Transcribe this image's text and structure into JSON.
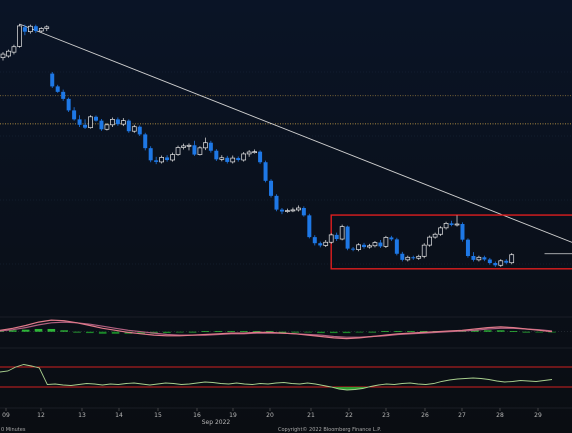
{
  "chart_data": {
    "type": "candlestick",
    "x_tick_labels": [
      "09",
      "12",
      "13",
      "14",
      "15",
      "16",
      "19",
      "20",
      "21",
      "22",
      "23",
      "26",
      "27",
      "28",
      "29"
    ],
    "month_label": "Sep 2022",
    "interval_label": "0 Minutes",
    "copyright": "Copyright© 2022 Bloomberg Finance L.P.",
    "colors": {
      "up": "#f2f2f2",
      "down": "#1e78e6",
      "trendline": "#cfcfcf",
      "box": "#e01e1e",
      "dotted": "#e8b84a",
      "macd_fast": "#e07a8a",
      "macd_slow": "#b06080",
      "histogram": "#2fbf3a",
      "rsi": "#a9d08e",
      "rsi_band": "#d02020"
    },
    "price_ylim": [
      0,
      100
    ],
    "candles": [
      [
        94.5,
        95.6,
        93.6,
        96.2
      ],
      [
        95,
        96.5,
        94.5,
        97
      ],
      [
        96.2,
        97.9,
        95.5,
        98.5
      ],
      [
        98,
        104.4,
        97.6,
        105
      ],
      [
        104,
        102.6,
        101.5,
        104.8
      ],
      [
        102.6,
        104.3,
        102,
        104.8
      ],
      [
        104.3,
        102.8,
        102.2,
        104.8
      ],
      [
        102.8,
        103.6,
        102.4,
        104
      ],
      [
        103.6,
        104.1,
        102.8,
        104.6
      ],
      [
        89.5,
        85.5,
        85,
        90
      ],
      [
        85.5,
        83.8,
        83.5,
        86
      ],
      [
        83.8,
        81.6,
        81,
        84.5
      ],
      [
        81.6,
        78,
        77.5,
        82
      ],
      [
        78,
        75.2,
        74.8,
        79
      ],
      [
        75.2,
        73.5,
        72.8,
        76.5
      ],
      [
        73.5,
        72.6,
        72.2,
        75.2
      ],
      [
        72.6,
        76,
        72.3,
        76.5
      ],
      [
        76,
        74.8,
        74.5,
        76.4
      ],
      [
        74.8,
        72.1,
        71.6,
        75.3
      ],
      [
        72.1,
        73.5,
        71.7,
        74
      ],
      [
        73.5,
        75.2,
        72.8,
        75.8
      ],
      [
        75.2,
        73.7,
        73.2,
        75.8
      ],
      [
        73.7,
        74.8,
        73.1,
        75.6
      ],
      [
        74.8,
        71.5,
        71,
        75.2
      ],
      [
        71.5,
        72.9,
        71,
        73.5
      ],
      [
        72.9,
        70.5,
        70,
        73.3
      ],
      [
        70.5,
        66.2,
        65.5,
        71
      ],
      [
        66.2,
        62.4,
        61.8,
        66.8
      ],
      [
        62.4,
        61.9,
        61.2,
        63.5
      ],
      [
        61.9,
        63.3,
        61.4,
        63.9
      ],
      [
        63.3,
        62.5,
        62,
        64
      ],
      [
        62.5,
        64.2,
        62,
        64.8
      ],
      [
        64.2,
        66.4,
        63.8,
        67
      ],
      [
        66.4,
        66.9,
        65.8,
        67.6
      ],
      [
        66.9,
        67.1,
        65.5,
        67.7
      ],
      [
        67.1,
        64.2,
        63.8,
        68.5
      ],
      [
        64.2,
        66.3,
        63.9,
        66.8
      ],
      [
        66.3,
        67.9,
        65.6,
        69.5
      ],
      [
        67.9,
        65.4,
        64.8,
        68.5
      ],
      [
        65.4,
        62.7,
        62.2,
        65.9
      ],
      [
        62.7,
        63.2,
        62.1,
        64
      ],
      [
        63.2,
        61.9,
        61.4,
        63.8
      ],
      [
        61.9,
        63.1,
        61.4,
        63.9
      ],
      [
        63.1,
        62.5,
        62,
        63.6
      ],
      [
        62.5,
        64.4,
        62,
        65
      ],
      [
        64.4,
        65,
        63.5,
        65.6
      ],
      [
        65,
        65.1,
        64.5,
        65.8
      ],
      [
        65.1,
        61.8,
        61.3,
        65.5
      ],
      [
        61.8,
        56,
        55.5,
        62.3
      ],
      [
        56,
        51.3,
        50.8,
        56.5
      ],
      [
        51.3,
        47,
        46.5,
        51.8
      ],
      [
        47,
        46.4,
        45.6,
        47.5
      ],
      [
        46.4,
        46.7,
        46,
        47.3
      ],
      [
        46.7,
        46.9,
        46.2,
        47.6
      ],
      [
        46.9,
        47.5,
        46.4,
        48.3
      ],
      [
        47.5,
        45.2,
        44.8,
        48
      ],
      [
        45.2,
        38.4,
        38,
        45.7
      ],
      [
        38.4,
        36.5,
        35.8,
        39
      ],
      [
        36.5,
        35.8,
        35.2,
        37
      ],
      [
        35.8,
        36.8,
        35.3,
        37.5
      ],
      [
        36.8,
        39.1,
        36.3,
        39.6
      ],
      [
        39.1,
        37.8,
        37.2,
        39.8
      ],
      [
        37.8,
        41.7,
        37.4,
        42.3
      ],
      [
        41.7,
        34.8,
        34.3,
        42
      ],
      [
        34.8,
        34.5,
        34,
        35.3
      ],
      [
        34.5,
        36,
        34,
        36.5
      ],
      [
        36,
        35.3,
        34.8,
        36.6
      ],
      [
        35.3,
        35.7,
        34.8,
        36.3
      ],
      [
        35.7,
        36.7,
        35.2,
        37.2
      ],
      [
        36.7,
        35.5,
        35,
        37.5
      ],
      [
        35.5,
        38.3,
        35,
        38.8
      ],
      [
        38.3,
        37.7,
        37.2,
        38.8
      ],
      [
        37.7,
        33.2,
        32.7,
        38.2
      ],
      [
        33.2,
        31.3,
        30.8,
        33.8
      ],
      [
        31.3,
        32.1,
        30.8,
        32.6
      ],
      [
        32.1,
        31.8,
        31.3,
        32.6
      ],
      [
        31.8,
        32.4,
        31.3,
        32.9
      ],
      [
        32.4,
        35.9,
        31.8,
        36.5
      ],
      [
        35.9,
        38.4,
        35.4,
        38.9
      ],
      [
        38.4,
        39.3,
        37.9,
        39.8
      ],
      [
        39.3,
        41.3,
        38.8,
        41.8
      ],
      [
        41.3,
        42.7,
        40.8,
        43.2
      ],
      [
        42.7,
        42.2,
        41.8,
        43.5
      ],
      [
        42.2,
        42.5,
        41.7,
        45.2
      ],
      [
        42.5,
        37.6,
        37,
        43
      ],
      [
        37.6,
        32.5,
        32,
        38
      ],
      [
        32.5,
        31.3,
        30.8,
        33.7
      ],
      [
        31.3,
        32.1,
        30.8,
        32.6
      ],
      [
        32.1,
        31.4,
        30.9,
        32.6
      ],
      [
        31.4,
        30.3,
        29.8,
        31.9
      ],
      [
        30.3,
        29.6,
        29.1,
        30.8
      ],
      [
        29.6,
        31,
        29.1,
        31.5
      ],
      [
        31,
        30.4,
        29.9,
        31.5
      ],
      [
        30.4,
        32.9,
        29.9,
        33.4
      ]
    ],
    "trendline": [
      [
        3,
        105
      ],
      [
        97,
        41.5
      ]
    ],
    "dotted_levels": [
      82.6,
      73.8
    ],
    "box": {
      "start": 60,
      "end": 99,
      "top": 45.3,
      "bottom": 28.5
    },
    "box_side_level": 33.2,
    "macd_fast": [
      0.2,
      0.5,
      0.9,
      1.4,
      1.7,
      1.6,
      1.3,
      0.9,
      0.5,
      0.2,
      -0.1,
      -0.3,
      -0.5,
      -0.6,
      -0.6,
      -0.5,
      -0.4,
      -0.3,
      -0.2,
      -0.2,
      -0.1,
      -0.1,
      -0.2,
      -0.3,
      -0.5,
      -0.7,
      -0.9,
      -1.0,
      -0.9,
      -0.7,
      -0.5,
      -0.3,
      -0.2,
      -0.1,
      0.0,
      0.1,
      0.2,
      0.4,
      0.6,
      0.7,
      0.6,
      0.4,
      0.2,
      0.0
    ],
    "macd_slow": [
      0.1,
      0.3,
      0.6,
      1.0,
      1.3,
      1.4,
      1.3,
      1.1,
      0.8,
      0.5,
      0.2,
      0.0,
      -0.2,
      -0.4,
      -0.5,
      -0.5,
      -0.5,
      -0.4,
      -0.3,
      -0.3,
      -0.2,
      -0.2,
      -0.2,
      -0.3,
      -0.4,
      -0.5,
      -0.7,
      -0.8,
      -0.8,
      -0.7,
      -0.6,
      -0.4,
      -0.3,
      -0.2,
      -0.1,
      0.0,
      0.1,
      0.2,
      0.4,
      0.5,
      0.5,
      0.4,
      0.3,
      0.1
    ],
    "histogram": [
      0.1,
      0.2,
      0.3,
      0.4,
      0.4,
      0.2,
      0,
      -0.2,
      -0.3,
      -0.3,
      -0.3,
      -0.3,
      -0.3,
      -0.2,
      -0.1,
      0,
      0.1,
      0.1,
      0.1,
      0.1,
      0.1,
      0.1,
      0,
      0,
      -0.1,
      -0.2,
      -0.2,
      -0.2,
      -0.1,
      0,
      0.1,
      0.1,
      0.1,
      0.1,
      0.1,
      0.1,
      0.1,
      0.2,
      0.2,
      0.2,
      0.1,
      0,
      -0.1,
      -0.1
    ],
    "macd_ylim": [
      -1.5,
      2
    ],
    "rsi": [
      60,
      62,
      70,
      75,
      72,
      68,
      35,
      36,
      34,
      33,
      35,
      37,
      36,
      34,
      36,
      35,
      37,
      38,
      36,
      34,
      36,
      38,
      37,
      35,
      36,
      38,
      40,
      39,
      37,
      36,
      38,
      36,
      35,
      37,
      36,
      38,
      39,
      37,
      36,
      38,
      36,
      33,
      30,
      26,
      24,
      25,
      27,
      31,
      34,
      36,
      35,
      37,
      38,
      36,
      35,
      37,
      41,
      44,
      46,
      47,
      48,
      47,
      45,
      42,
      40,
      41,
      43,
      42,
      41,
      43,
      45
    ],
    "rsi_ylim": [
      0,
      100
    ],
    "rsi_band": 70
  }
}
